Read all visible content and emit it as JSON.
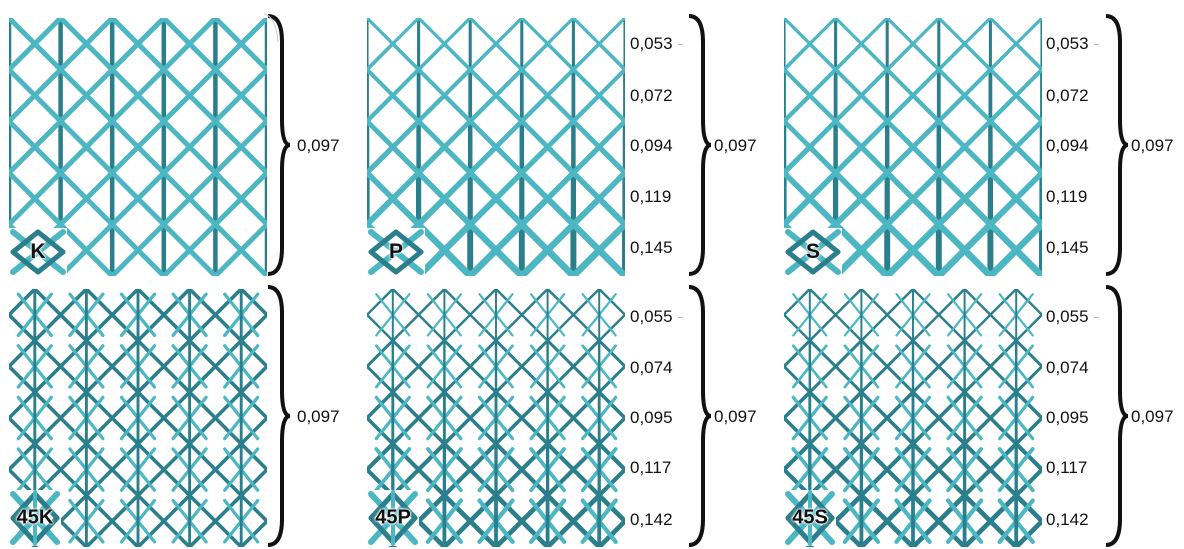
{
  "colors": {
    "strut_light": "#4cb7c3",
    "strut_dark": "#2b7f8c",
    "label": "#111111"
  },
  "panels": [
    {
      "id": "K",
      "label": "K",
      "row": 0,
      "col": 0,
      "pattern": "diamond",
      "graded": false
    },
    {
      "id": "P",
      "label": "P",
      "row": 0,
      "col": 1,
      "pattern": "diamond",
      "graded": true
    },
    {
      "id": "S",
      "label": "S",
      "row": 0,
      "col": 2,
      "pattern": "diamond",
      "graded": true
    },
    {
      "id": "45K",
      "label": "45K",
      "row": 1,
      "col": 0,
      "pattern": "dense",
      "graded": false
    },
    {
      "id": "45P",
      "label": "45P",
      "row": 1,
      "col": 1,
      "pattern": "dense",
      "graded": true
    },
    {
      "id": "45S",
      "label": "45S",
      "row": 1,
      "col": 2,
      "pattern": "dense",
      "graded": true
    }
  ],
  "top_values": [
    "0,053",
    "0,072",
    "0,094",
    "0,119",
    "0,145"
  ],
  "bottom_values": [
    "0,055",
    "0,074",
    "0,095",
    "0,117",
    "0,142"
  ],
  "overall": {
    "K": "0,097",
    "P": "0,097",
    "S": "0,097",
    "45K": "0,097",
    "45P": "0,097",
    "45S": "0,097"
  }
}
